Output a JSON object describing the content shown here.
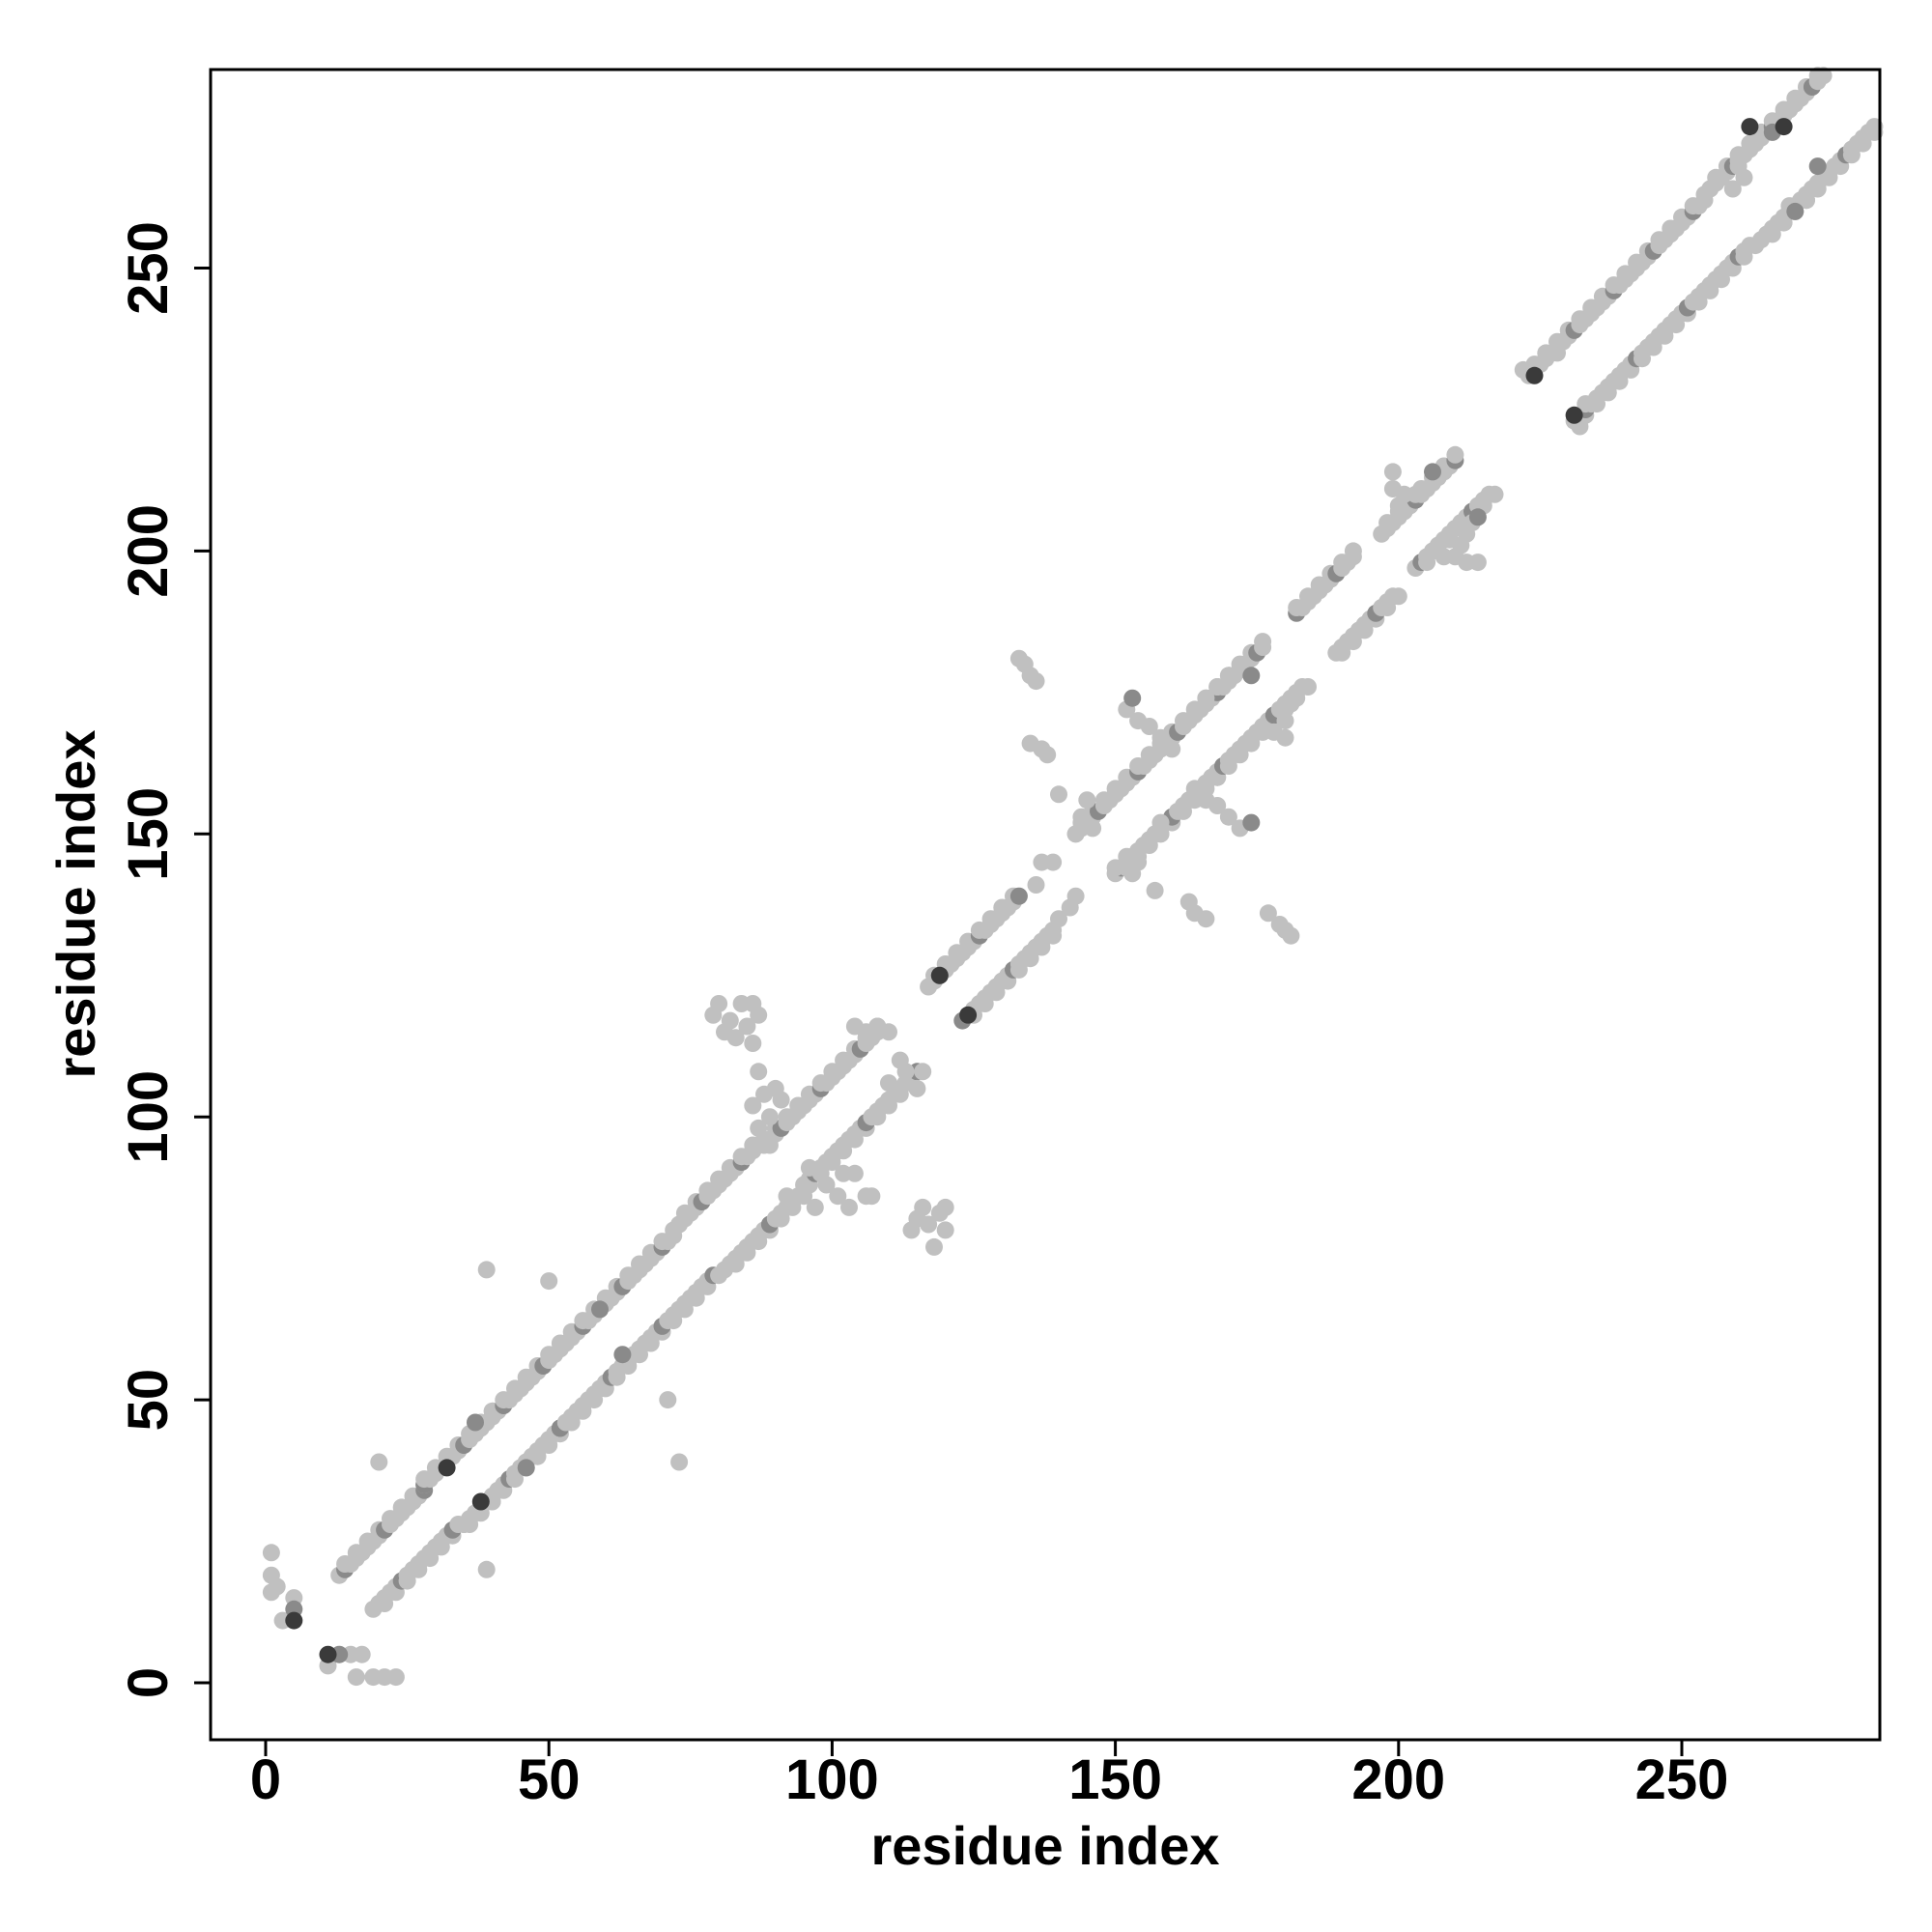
{
  "chart_data": {
    "type": "scatter",
    "title": "",
    "xlabel": "residue index",
    "ylabel": "residue index",
    "xlim": [
      -10,
      285
    ],
    "ylim": [
      -10,
      285
    ],
    "xticks": [
      0,
      50,
      100,
      150,
      200,
      250
    ],
    "yticks": [
      0,
      50,
      100,
      150,
      200,
      250
    ],
    "xtick_labels": [
      "0",
      "50",
      "100",
      "150",
      "200",
      "250"
    ],
    "ytick_labels": [
      "0",
      "50",
      "100",
      "150",
      "200",
      "250"
    ],
    "grid": false,
    "legend": "none",
    "colors": {
      "light_point": "#c0c0c0",
      "mid_point": "#8a8a8a",
      "dark_point": "#3a3a3a",
      "axis": "#000000"
    },
    "near_diagonal_segments": [
      {
        "from": 13,
        "to": 28,
        "upper_offset": 6,
        "lower_offset": -6
      },
      {
        "from": 28,
        "to": 45,
        "upper_offset": 7,
        "lower_offset": -7
      },
      {
        "from": 45,
        "to": 72,
        "upper_offset": 7,
        "lower_offset": -7
      },
      {
        "from": 73,
        "to": 87,
        "upper_offset": 8,
        "lower_offset": -8
      },
      {
        "from": 88,
        "to": 108,
        "upper_offset": 7,
        "lower_offset": -7
      },
      {
        "from": 117,
        "to": 133,
        "upper_offset": 6,
        "lower_offset": -6
      },
      {
        "from": 143,
        "to": 160,
        "upper_offset": 7,
        "lower_offset": -7
      },
      {
        "from": 160,
        "to": 176,
        "upper_offset": 7,
        "lower_offset": -7
      },
      {
        "from": 182,
        "to": 192,
        "upper_offset": 7,
        "lower_offset": -7
      },
      {
        "from": 197,
        "to": 210,
        "upper_offset": 6,
        "lower_offset": -6
      },
      {
        "from": 223,
        "to": 254,
        "upper_offset": 8,
        "lower_offset": -8
      },
      {
        "from": 255,
        "to": 275,
        "upper_offset": 9,
        "lower_offset": -9
      }
    ],
    "points": [
      {
        "x": 1,
        "y": 23,
        "shade": "light"
      },
      {
        "x": 1,
        "y": 19,
        "shade": "light"
      },
      {
        "x": 1,
        "y": 16,
        "shade": "light"
      },
      {
        "x": 2,
        "y": 17,
        "shade": "light"
      },
      {
        "x": 3,
        "y": 11,
        "shade": "light"
      },
      {
        "x": 5,
        "y": 11,
        "shade": "dark"
      },
      {
        "x": 5,
        "y": 13,
        "shade": "mid"
      },
      {
        "x": 5,
        "y": 15,
        "shade": "light"
      },
      {
        "x": 11,
        "y": 5,
        "shade": "dark"
      },
      {
        "x": 11,
        "y": 3,
        "shade": "light"
      },
      {
        "x": 13,
        "y": 5,
        "shade": "mid"
      },
      {
        "x": 15,
        "y": 5,
        "shade": "light"
      },
      {
        "x": 16,
        "y": 1,
        "shade": "light"
      },
      {
        "x": 17,
        "y": 5,
        "shade": "light"
      },
      {
        "x": 19,
        "y": 1,
        "shade": "light"
      },
      {
        "x": 21,
        "y": 1,
        "shade": "light"
      },
      {
        "x": 23,
        "y": 1,
        "shade": "light"
      },
      {
        "x": 20,
        "y": 39,
        "shade": "light"
      },
      {
        "x": 20,
        "y": 14,
        "shade": "light"
      },
      {
        "x": 32,
        "y": 38,
        "shade": "dark"
      },
      {
        "x": 38,
        "y": 32,
        "shade": "dark"
      },
      {
        "x": 39,
        "y": 20,
        "shade": "light"
      },
      {
        "x": 39,
        "y": 73,
        "shade": "light"
      },
      {
        "x": 50,
        "y": 71,
        "shade": "light"
      },
      {
        "x": 71,
        "y": 50,
        "shade": "light"
      },
      {
        "x": 73,
        "y": 39,
        "shade": "light"
      },
      {
        "x": 37,
        "y": 46,
        "shade": "mid"
      },
      {
        "x": 46,
        "y": 38,
        "shade": "mid"
      },
      {
        "x": 59,
        "y": 66,
        "shade": "mid"
      },
      {
        "x": 63,
        "y": 58,
        "shade": "mid"
      },
      {
        "x": 79,
        "y": 118,
        "shade": "light"
      },
      {
        "x": 80,
        "y": 120,
        "shade": "light"
      },
      {
        "x": 82,
        "y": 117,
        "shade": "light"
      },
      {
        "x": 83,
        "y": 114,
        "shade": "light"
      },
      {
        "x": 84,
        "y": 120,
        "shade": "light"
      },
      {
        "x": 85,
        "y": 116,
        "shade": "light"
      },
      {
        "x": 86,
        "y": 113,
        "shade": "light"
      },
      {
        "x": 87,
        "y": 118,
        "shade": "light"
      },
      {
        "x": 81,
        "y": 115,
        "shade": "light"
      },
      {
        "x": 86,
        "y": 120,
        "shade": "light"
      },
      {
        "x": 114,
        "y": 80,
        "shade": "light"
      },
      {
        "x": 116,
        "y": 84,
        "shade": "light"
      },
      {
        "x": 117,
        "y": 81,
        "shade": "light"
      },
      {
        "x": 118,
        "y": 77,
        "shade": "light"
      },
      {
        "x": 119,
        "y": 83,
        "shade": "light"
      },
      {
        "x": 120,
        "y": 80,
        "shade": "light"
      },
      {
        "x": 115,
        "y": 82,
        "shade": "light"
      },
      {
        "x": 120,
        "y": 84,
        "shade": "light"
      },
      {
        "x": 87,
        "y": 108,
        "shade": "light"
      },
      {
        "x": 88,
        "y": 104,
        "shade": "light"
      },
      {
        "x": 89,
        "y": 100,
        "shade": "light"
      },
      {
        "x": 90,
        "y": 105,
        "shade": "light"
      },
      {
        "x": 86,
        "y": 102,
        "shade": "light"
      },
      {
        "x": 87,
        "y": 98,
        "shade": "light"
      },
      {
        "x": 91,
        "y": 103,
        "shade": "light"
      },
      {
        "x": 89,
        "y": 95,
        "shade": "light"
      },
      {
        "x": 92,
        "y": 86,
        "shade": "light"
      },
      {
        "x": 95,
        "y": 87,
        "shade": "light"
      },
      {
        "x": 97,
        "y": 84,
        "shade": "light"
      },
      {
        "x": 99,
        "y": 88,
        "shade": "light"
      },
      {
        "x": 101,
        "y": 86,
        "shade": "light"
      },
      {
        "x": 103,
        "y": 84,
        "shade": "light"
      },
      {
        "x": 104,
        "y": 90,
        "shade": "light"
      },
      {
        "x": 106,
        "y": 86,
        "shade": "light"
      },
      {
        "x": 100,
        "y": 93,
        "shade": "light"
      },
      {
        "x": 102,
        "y": 90,
        "shade": "light"
      },
      {
        "x": 107,
        "y": 86,
        "shade": "light"
      },
      {
        "x": 96,
        "y": 91,
        "shade": "light"
      },
      {
        "x": 104,
        "y": 116,
        "shade": "light"
      },
      {
        "x": 106,
        "y": 115,
        "shade": "light"
      },
      {
        "x": 108,
        "y": 116,
        "shade": "light"
      },
      {
        "x": 110,
        "y": 115,
        "shade": "light"
      },
      {
        "x": 113,
        "y": 108,
        "shade": "light"
      },
      {
        "x": 115,
        "y": 105,
        "shade": "light"
      },
      {
        "x": 110,
        "y": 106,
        "shade": "light"
      },
      {
        "x": 112,
        "y": 110,
        "shade": "light"
      },
      {
        "x": 119,
        "y": 125,
        "shade": "dark"
      },
      {
        "x": 124,
        "y": 118,
        "shade": "dark"
      },
      {
        "x": 133,
        "y": 181,
        "shade": "light"
      },
      {
        "x": 134,
        "y": 180,
        "shade": "light"
      },
      {
        "x": 135,
        "y": 178,
        "shade": "light"
      },
      {
        "x": 136,
        "y": 177,
        "shade": "light"
      },
      {
        "x": 135,
        "y": 166,
        "shade": "light"
      },
      {
        "x": 137,
        "y": 165,
        "shade": "light"
      },
      {
        "x": 138,
        "y": 164,
        "shade": "light"
      },
      {
        "x": 136,
        "y": 141,
        "shade": "light"
      },
      {
        "x": 137,
        "y": 145,
        "shade": "light"
      },
      {
        "x": 139,
        "y": 145,
        "shade": "light"
      },
      {
        "x": 140,
        "y": 157,
        "shade": "light"
      },
      {
        "x": 140,
        "y": 135,
        "shade": "light"
      },
      {
        "x": 142,
        "y": 137,
        "shade": "light"
      },
      {
        "x": 143,
        "y": 139,
        "shade": "light"
      },
      {
        "x": 163,
        "y": 138,
        "shade": "light"
      },
      {
        "x": 164,
        "y": 136,
        "shade": "light"
      },
      {
        "x": 166,
        "y": 135,
        "shade": "light"
      },
      {
        "x": 177,
        "y": 136,
        "shade": "light"
      },
      {
        "x": 179,
        "y": 134,
        "shade": "light"
      },
      {
        "x": 180,
        "y": 133,
        "shade": "light"
      },
      {
        "x": 181,
        "y": 132,
        "shade": "light"
      },
      {
        "x": 157,
        "y": 140,
        "shade": "light"
      },
      {
        "x": 174,
        "y": 152,
        "shade": "mid"
      },
      {
        "x": 153,
        "y": 174,
        "shade": "mid"
      },
      {
        "x": 152,
        "y": 172,
        "shade": "light"
      },
      {
        "x": 154,
        "y": 170,
        "shade": "light"
      },
      {
        "x": 156,
        "y": 169,
        "shade": "light"
      },
      {
        "x": 158,
        "y": 167,
        "shade": "light"
      },
      {
        "x": 160,
        "y": 165,
        "shade": "light"
      },
      {
        "x": 166,
        "y": 174,
        "shade": "light"
      },
      {
        "x": 168,
        "y": 176,
        "shade": "light"
      },
      {
        "x": 170,
        "y": 178,
        "shade": "light"
      },
      {
        "x": 172,
        "y": 179,
        "shade": "light"
      },
      {
        "x": 174,
        "y": 178,
        "shade": "mid"
      },
      {
        "x": 178,
        "y": 168,
        "shade": "light"
      },
      {
        "x": 180,
        "y": 170,
        "shade": "light"
      },
      {
        "x": 181,
        "y": 173,
        "shade": "light"
      },
      {
        "x": 180,
        "y": 167,
        "shade": "light"
      },
      {
        "x": 164,
        "y": 158,
        "shade": "light"
      },
      {
        "x": 166,
        "y": 156,
        "shade": "light"
      },
      {
        "x": 168,
        "y": 155,
        "shade": "light"
      },
      {
        "x": 170,
        "y": 153,
        "shade": "light"
      },
      {
        "x": 172,
        "y": 151,
        "shade": "light"
      },
      {
        "x": 158,
        "y": 152,
        "shade": "light"
      },
      {
        "x": 158,
        "y": 150,
        "shade": "light"
      },
      {
        "x": 145,
        "y": 156,
        "shade": "light"
      },
      {
        "x": 144,
        "y": 153,
        "shade": "light"
      },
      {
        "x": 146,
        "y": 151,
        "shade": "light"
      },
      {
        "x": 143,
        "y": 150,
        "shade": "light"
      },
      {
        "x": 152,
        "y": 146,
        "shade": "light"
      },
      {
        "x": 150,
        "y": 144,
        "shade": "light"
      },
      {
        "x": 153,
        "y": 143,
        "shade": "light"
      },
      {
        "x": 154,
        "y": 145,
        "shade": "light"
      },
      {
        "x": 199,
        "y": 214,
        "shade": "light"
      },
      {
        "x": 199,
        "y": 211,
        "shade": "light"
      },
      {
        "x": 200,
        "y": 208,
        "shade": "light"
      },
      {
        "x": 201,
        "y": 210,
        "shade": "light"
      },
      {
        "x": 203,
        "y": 210,
        "shade": "light"
      },
      {
        "x": 205,
        "y": 211,
        "shade": "light"
      },
      {
        "x": 206,
        "y": 214,
        "shade": "mid"
      },
      {
        "x": 208,
        "y": 199,
        "shade": "light"
      },
      {
        "x": 210,
        "y": 199,
        "shade": "light"
      },
      {
        "x": 211,
        "y": 201,
        "shade": "light"
      },
      {
        "x": 212,
        "y": 203,
        "shade": "light"
      },
      {
        "x": 213,
        "y": 205,
        "shade": "light"
      },
      {
        "x": 214,
        "y": 206,
        "shade": "mid"
      },
      {
        "x": 214,
        "y": 198,
        "shade": "light"
      },
      {
        "x": 212,
        "y": 198,
        "shade": "light"
      },
      {
        "x": 222,
        "y": 232,
        "shade": "light"
      },
      {
        "x": 224,
        "y": 231,
        "shade": "dark"
      },
      {
        "x": 231,
        "y": 224,
        "shade": "dark"
      },
      {
        "x": 232,
        "y": 222,
        "shade": "light"
      },
      {
        "x": 228,
        "y": 235,
        "shade": "light"
      },
      {
        "x": 233,
        "y": 226,
        "shade": "light"
      },
      {
        "x": 262,
        "y": 275,
        "shade": "dark"
      },
      {
        "x": 266,
        "y": 274,
        "shade": "mid"
      },
      {
        "x": 268,
        "y": 275,
        "shade": "dark"
      },
      {
        "x": 274,
        "y": 268,
        "shade": "mid"
      },
      {
        "x": 274,
        "y": 265,
        "shade": "light"
      },
      {
        "x": 272,
        "y": 262,
        "shade": "light"
      },
      {
        "x": 269,
        "y": 261,
        "shade": "light"
      },
      {
        "x": 273,
        "y": 264,
        "shade": "light"
      },
      {
        "x": 260,
        "y": 268,
        "shade": "light"
      },
      {
        "x": 261,
        "y": 266,
        "shade": "light"
      },
      {
        "x": 259,
        "y": 264,
        "shade": "light"
      },
      {
        "x": 270,
        "y": 260,
        "shade": "mid"
      }
    ]
  }
}
